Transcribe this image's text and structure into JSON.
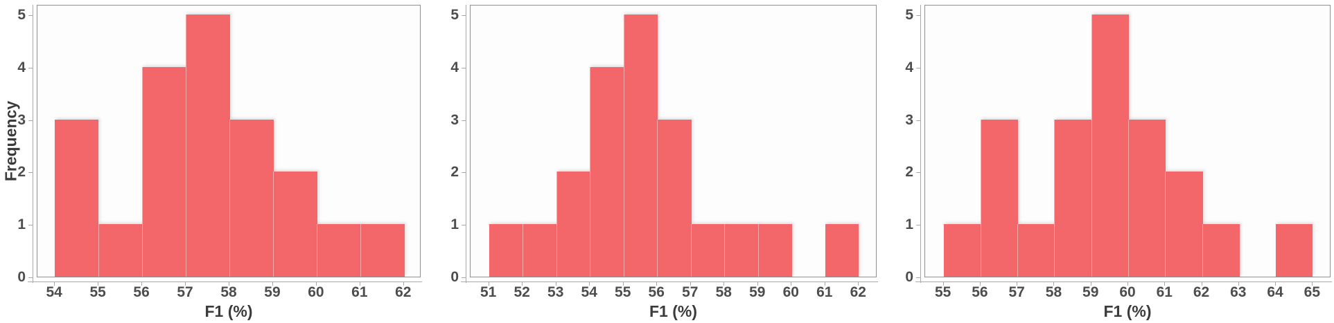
{
  "figure": {
    "xlabel": "F1 (%)",
    "ylabel": "Frequency",
    "bar_color": "#F3676A",
    "axis_line_color": "#a8a8a8",
    "frame_color": "#8f8f8f",
    "tick_label_color": "#4d4d4d",
    "axis_title_color": "#3b3b3b"
  },
  "chart_data": [
    {
      "type": "bar",
      "chart_kind": "histogram",
      "title": "",
      "xlabel": "F1 (%)",
      "ylabel": "Frequency",
      "bin_edges": [
        54,
        55,
        56,
        57,
        58,
        59,
        60,
        61,
        62
      ],
      "counts": [
        3,
        1,
        4,
        5,
        3,
        2,
        1,
        1
      ],
      "x_ticks": [
        "54",
        "55",
        "56",
        "57",
        "58",
        "59",
        "60",
        "61",
        "62"
      ],
      "y_ticks": [
        "0",
        "1",
        "2",
        "3",
        "4",
        "5"
      ],
      "xlim": [
        53.6,
        62.4
      ],
      "ylim": [
        0,
        5.2
      ],
      "grid": false,
      "legend": false
    },
    {
      "type": "bar",
      "chart_kind": "histogram",
      "title": "",
      "xlabel": "F1 (%)",
      "bin_edges": [
        51,
        52,
        53,
        54,
        55,
        56,
        57,
        58,
        59,
        60,
        61,
        62
      ],
      "counts": [
        1,
        1,
        2,
        4,
        5,
        3,
        1,
        1,
        1,
        0,
        1
      ],
      "x_ticks": [
        "51",
        "52",
        "53",
        "54",
        "55",
        "56",
        "57",
        "58",
        "59",
        "60",
        "61",
        "62"
      ],
      "y_ticks": [
        "0",
        "1",
        "2",
        "3",
        "4",
        "5"
      ],
      "xlim": [
        50.45,
        62.55
      ],
      "ylim": [
        0,
        5.2
      ],
      "grid": false,
      "legend": false
    },
    {
      "type": "bar",
      "chart_kind": "histogram",
      "title": "",
      "xlabel": "F1 (%)",
      "bin_edges": [
        55,
        56,
        57,
        58,
        59,
        60,
        61,
        62,
        63,
        64,
        65
      ],
      "counts": [
        1,
        3,
        1,
        3,
        5,
        3,
        2,
        1,
        0,
        1
      ],
      "x_ticks": [
        "55",
        "56",
        "57",
        "58",
        "59",
        "60",
        "61",
        "62",
        "63",
        "64",
        "65"
      ],
      "y_ticks": [
        "0",
        "1",
        "2",
        "3",
        "4",
        "5"
      ],
      "xlim": [
        54.5,
        65.5
      ],
      "ylim": [
        0,
        5.2
      ],
      "grid": false,
      "legend": false
    }
  ]
}
